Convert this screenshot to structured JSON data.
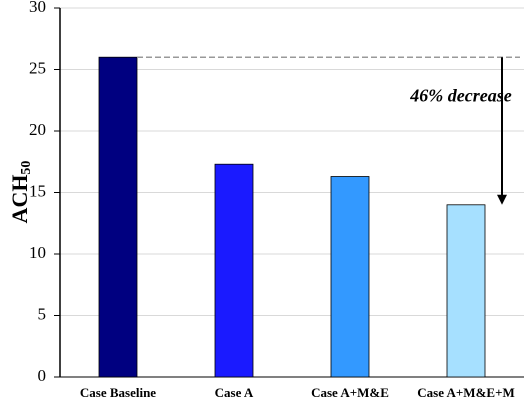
{
  "chart_data": {
    "type": "bar",
    "ylabel": "ACH",
    "ylabel_sub": "50",
    "categories": [
      "Case Baseline",
      "Case A",
      "Case A+M&E",
      "Case A+M&E+M"
    ],
    "values": [
      26,
      17.3,
      16.3,
      14
    ],
    "colors": [
      "#000080",
      "#1a1aff",
      "#3399ff",
      "#a6e0ff"
    ],
    "ylim": [
      0,
      30
    ],
    "yticks": [
      0,
      5,
      10,
      15,
      20,
      25,
      30
    ],
    "grid": true,
    "annotation": "46% decrease"
  }
}
